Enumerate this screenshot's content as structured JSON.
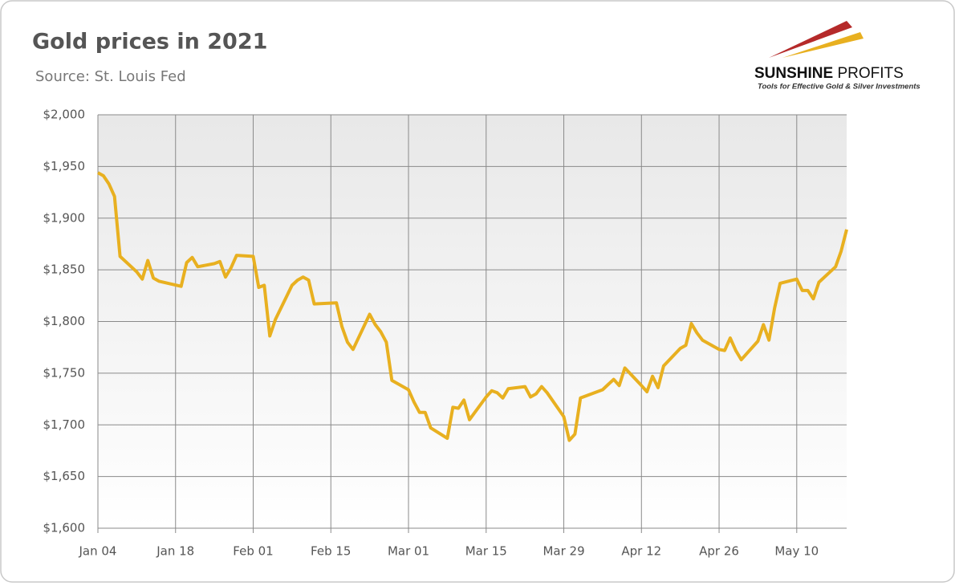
{
  "chart_data": {
    "type": "line",
    "title": "Gold prices in 2021",
    "subtitle": "Source: St. Louis Fed",
    "logo": {
      "name_bold": "SUNSHINE",
      "name_light": "PROFITS",
      "tagline": "Tools for Effective Gold & Silver Investments"
    },
    "x": [
      "Jan 04",
      "Jan 05",
      "Jan 06",
      "Jan 07",
      "Jan 08",
      "Jan 11",
      "Jan 12",
      "Jan 13",
      "Jan 14",
      "Jan 15",
      "Jan 19",
      "Jan 20",
      "Jan 21",
      "Jan 22",
      "Jan 25",
      "Jan 26",
      "Jan 27",
      "Jan 28",
      "Jan 29",
      "Feb 01",
      "Feb 02",
      "Feb 03",
      "Feb 04",
      "Feb 05",
      "Feb 08",
      "Feb 09",
      "Feb 10",
      "Feb 11",
      "Feb 12",
      "Feb 16",
      "Feb 17",
      "Feb 18",
      "Feb 19",
      "Feb 22",
      "Feb 23",
      "Feb 24",
      "Feb 25",
      "Feb 26",
      "Mar 01",
      "Mar 02",
      "Mar 03",
      "Mar 04",
      "Mar 05",
      "Mar 08",
      "Mar 09",
      "Mar 10",
      "Mar 11",
      "Mar 12",
      "Mar 15",
      "Mar 16",
      "Mar 17",
      "Mar 18",
      "Mar 19",
      "Mar 22",
      "Mar 23",
      "Mar 24",
      "Mar 25",
      "Mar 26",
      "Mar 29",
      "Mar 30",
      "Mar 31",
      "Apr 01",
      "Apr 05",
      "Apr 06",
      "Apr 07",
      "Apr 08",
      "Apr 09",
      "Apr 12",
      "Apr 13",
      "Apr 14",
      "Apr 15",
      "Apr 16",
      "Apr 19",
      "Apr 20",
      "Apr 21",
      "Apr 22",
      "Apr 23",
      "Apr 26",
      "Apr 27",
      "Apr 28",
      "Apr 29",
      "Apr 30",
      "May 03",
      "May 04",
      "May 05",
      "May 06",
      "May 07",
      "May 10",
      "May 11",
      "May 12",
      "May 13",
      "May 14",
      "May 17",
      "May 18",
      "May 19"
    ],
    "series": [
      {
        "name": "Gold price",
        "color": "#e8b020",
        "values": [
          1944,
          1941,
          1933,
          1921,
          1863,
          1848,
          1841,
          1859,
          1842,
          1839,
          1834,
          1857,
          1862,
          1853,
          1856,
          1858,
          1843,
          1852,
          1864,
          1863,
          1833,
          1835,
          1786,
          1802,
          1835,
          1840,
          1843,
          1840,
          1817,
          1818,
          1795,
          1780,
          1773,
          1807,
          1797,
          1790,
          1780,
          1743,
          1734,
          1722,
          1712,
          1712,
          1697,
          1687,
          1717,
          1716,
          1724,
          1705,
          1727,
          1733,
          1731,
          1726,
          1735,
          1737,
          1727,
          1730,
          1737,
          1731,
          1708,
          1685,
          1691,
          1726,
          1734,
          1739,
          1744,
          1738,
          1755,
          1738,
          1732,
          1747,
          1736,
          1757,
          1774,
          1777,
          1798,
          1789,
          1782,
          1773,
          1772,
          1784,
          1772,
          1763,
          1781,
          1797,
          1782,
          1813,
          1837,
          1841,
          1830,
          1830,
          1822,
          1838,
          1853,
          1868,
          1889
        ]
      }
    ],
    "xlim": [
      "Jan 04",
      "May 19"
    ],
    "xticks": [
      "Jan 04",
      "Jan 18",
      "Feb 01",
      "Feb 15",
      "Mar 01",
      "Mar 15",
      "Mar 29",
      "Apr 12",
      "Apr 26",
      "May 10"
    ],
    "ylim": [
      1600,
      2000
    ],
    "yticks": [
      {
        "value": 1600,
        "label": "$1,600"
      },
      {
        "value": 1650,
        "label": "$1,650"
      },
      {
        "value": 1700,
        "label": "$1,700"
      },
      {
        "value": 1750,
        "label": "$1,750"
      },
      {
        "value": 1800,
        "label": "$1,800"
      },
      {
        "value": 1850,
        "label": "$1,850"
      },
      {
        "value": 1900,
        "label": "$1,900"
      },
      {
        "value": 1950,
        "label": "$1,950"
      },
      {
        "value": 2000,
        "label": "$2,000"
      }
    ],
    "grid": true
  }
}
